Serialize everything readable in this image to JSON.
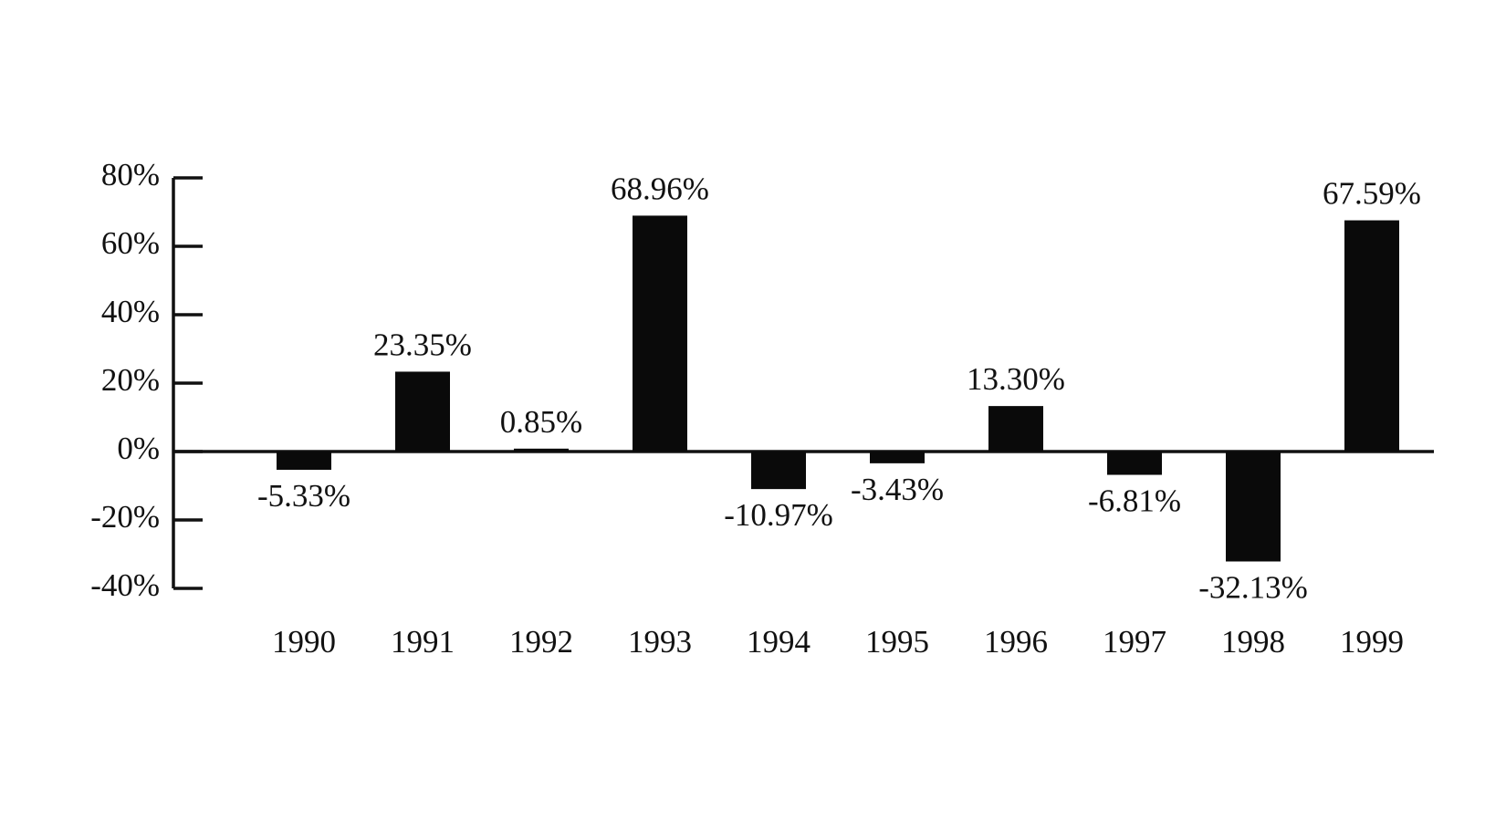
{
  "chart_data": {
    "type": "bar",
    "categories": [
      "1990",
      "1991",
      "1992",
      "1993",
      "1994",
      "1995",
      "1996",
      "1997",
      "1998",
      "1999"
    ],
    "values": [
      -5.33,
      23.35,
      0.85,
      68.96,
      -10.97,
      -3.43,
      13.3,
      -6.81,
      -32.13,
      67.59
    ],
    "value_labels": [
      "-5.33%",
      "23.35%",
      "0.85%",
      "68.96%",
      "-10.97%",
      "-3.43%",
      "13.30%",
      "-6.81%",
      "-32.13%",
      "67.59%"
    ],
    "color": "#0a0a0a",
    "ylim": [
      -40,
      80
    ],
    "yticks": [
      {
        "value": -40,
        "label": "-40%"
      },
      {
        "value": -20,
        "label": "-20%"
      },
      {
        "value": 0,
        "label": "0%"
      },
      {
        "value": 20,
        "label": "20%"
      },
      {
        "value": 40,
        "label": "40%"
      },
      {
        "value": 60,
        "label": "60%"
      },
      {
        "value": 80,
        "label": "80%"
      }
    ],
    "grid": false
  }
}
